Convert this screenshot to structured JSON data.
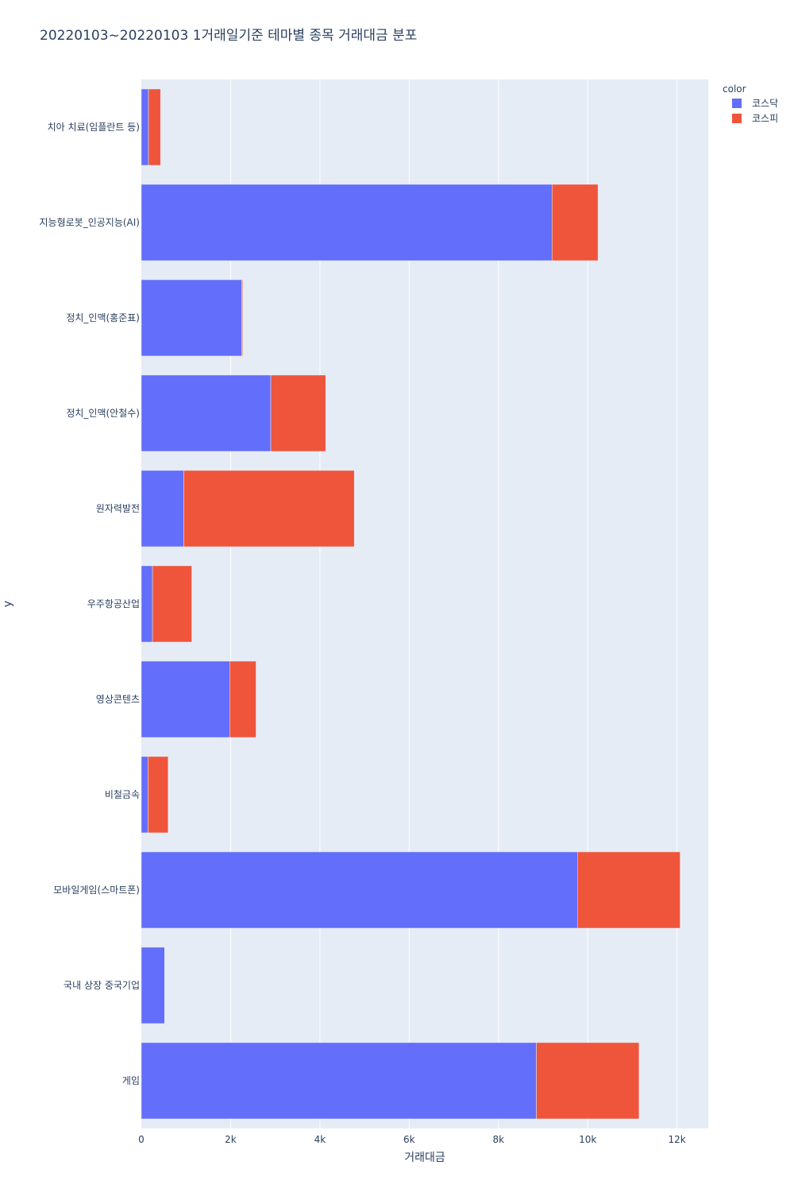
{
  "chart_data": {
    "type": "bar",
    "orientation": "horizontal",
    "barmode": "stack",
    "title": "20220103~20220103 1거래일기준 테마별 종목 거래대금 분포",
    "xlabel": "거래대금",
    "ylabel": "y",
    "xlim": [
      0,
      12700
    ],
    "xticks": [
      0,
      2000,
      4000,
      6000,
      8000,
      10000,
      12000
    ],
    "xtick_labels": [
      "0",
      "2k",
      "4k",
      "6k",
      "8k",
      "10k",
      "12k"
    ],
    "grid": true,
    "legend": {
      "title": "color",
      "position": "top-right"
    },
    "categories": [
      "치아 치료(임플란트 등)",
      "지능형로봇_인공지능(AI)",
      "정치_인맥(홍준표)",
      "정치_인맥(안철수)",
      "원자력발전",
      "우주항공산업",
      "영상콘텐츠",
      "비철금속",
      "모바일게임(스마트폰)",
      "국내 상장 중국기업",
      "게임"
    ],
    "series": [
      {
        "name": "코스닥",
        "color": "#636efa",
        "values": [
          160,
          9200,
          2250,
          2900,
          950,
          250,
          1980,
          150,
          9770,
          520,
          8850
        ]
      },
      {
        "name": "코스피",
        "color": "#ef553b",
        "values": [
          270,
          1030,
          20,
          1230,
          3820,
          880,
          590,
          450,
          2300,
          0,
          2300
        ]
      }
    ]
  }
}
